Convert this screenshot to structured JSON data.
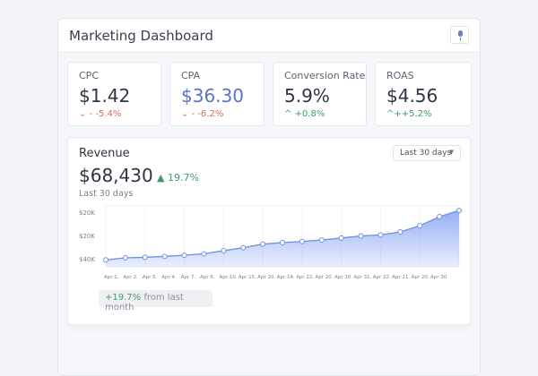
{
  "header": {
    "title": "Marketing Dashboard",
    "mic_icon": "microphone-icon"
  },
  "metrics": [
    {
      "label": "CPC",
      "value": "$1.42",
      "change": "- -5.4%",
      "direction": "down",
      "value_color": "#2f3542"
    },
    {
      "label": "CPA",
      "value": "$36.30",
      "change": "- -6.2%",
      "direction": "down",
      "value_color": "#5b74c0"
    },
    {
      "label": "Conversion Rate",
      "value": "5.9%",
      "change": "+0.8%",
      "direction": "up",
      "value_color": "#2f3542"
    },
    {
      "label": "ROAS",
      "value": "$4.56",
      "change": "++5.2%",
      "direction": "up",
      "value_color": "#2f3542"
    }
  ],
  "revenue": {
    "title": "Revenue",
    "total": "$68,430",
    "change": "19.7%",
    "subtitle": "Last 30 days",
    "range_select": "Last 30 days",
    "footer_change": "+19.7%",
    "footer_text": "from last month"
  },
  "chart_data": {
    "type": "area",
    "y_tick_labels": [
      "$40K",
      "$20K",
      "$20K"
    ],
    "x_tick_labels": [
      "Apr 1.",
      "Apr 2.",
      "Apr 5.",
      "Apr 4.",
      "Apr 7.",
      "Apr 6.",
      "Apr 10.",
      "Apr 15.",
      "Apr 20.",
      "Apr 14.",
      "Apr 22.",
      "Apr 20.",
      "Apr 20.",
      "Apr 31.",
      "Apr 22.",
      "Apr 21.",
      "Apr 20.",
      "Apr 30"
    ],
    "values": [
      38.5,
      41.5,
      42.3,
      43.8,
      45.4,
      47.7,
      52.3,
      56.9,
      62.3,
      64.6,
      66.2,
      68.5,
      71.5,
      74.6,
      76.2,
      80.8,
      90,
      103.8,
      113
    ],
    "ylim": [
      28,
      120
    ],
    "grid": true,
    "colors": {
      "line": "#6f8fe0",
      "fill": "#8fabf2"
    }
  }
}
